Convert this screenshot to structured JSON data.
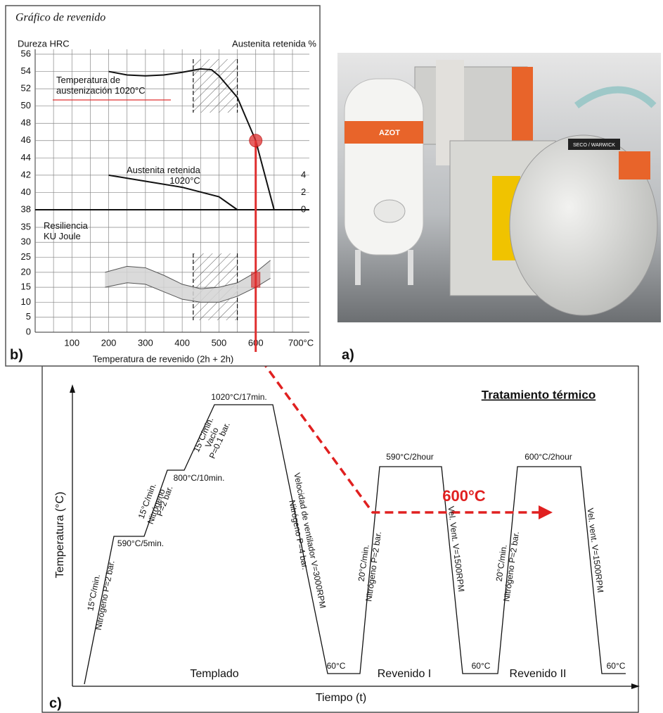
{
  "chart_data": [
    {
      "type": "line",
      "panel": "b)",
      "title": "Gráfico de revenido",
      "ylabel": "Dureza HRC",
      "y2label": "Austenita retenida %",
      "xlim": [
        0,
        700
      ],
      "ylim": [
        38,
        56
      ],
      "yticks": [
        38,
        40,
        42,
        44,
        46,
        48,
        50,
        52,
        54,
        56
      ],
      "y2lim": [
        0,
        18
      ],
      "y2ticks": [
        0,
        2,
        4
      ],
      "grid": true,
      "hatch": [
        430,
        550
      ],
      "highlight": {
        "x": 600,
        "y": 46,
        "color": "#e03030"
      },
      "series": [
        {
          "name": "Temperatura de\naustenización 1020°C",
          "color": "#111111",
          "x": [
            200,
            250,
            300,
            350,
            400,
            450,
            480,
            500,
            550,
            600,
            650
          ],
          "values": [
            54,
            53.6,
            53.5,
            53.6,
            53.9,
            54.3,
            54.2,
            53.5,
            51,
            46,
            38
          ]
        },
        {
          "name": "Austenita retenida\n1020°C",
          "color": "#111111",
          "axis": "y2",
          "x": [
            200,
            300,
            400,
            500,
            550
          ],
          "values": [
            4,
            3.3,
            2.6,
            1.5,
            0
          ]
        }
      ]
    },
    {
      "type": "band",
      "name": "Resiliencia\nKU Joule",
      "xlabel": "Temperatura de revenido (2h + 2h)",
      "xlim": [
        0,
        700
      ],
      "xticks": [
        100,
        200,
        300,
        400,
        500,
        600,
        {
          "value": 700,
          "label": "700°C"
        }
      ],
      "ylim": [
        0,
        35
      ],
      "yticks": [
        0,
        5,
        10,
        15,
        20,
        25,
        30,
        35
      ],
      "color": "#d4d4d4",
      "x": [
        190,
        250,
        300,
        350,
        400,
        450,
        500,
        550,
        600,
        640
      ],
      "lower": [
        15,
        16.5,
        16,
        13.5,
        11,
        10,
        10,
        12,
        15,
        18
      ],
      "upper": [
        20,
        22,
        21.5,
        19,
        16,
        14.5,
        15,
        16.5,
        20,
        24
      ]
    }
  ],
  "photo": {
    "caption": "a)",
    "labels": [
      "AZOT",
      "SECO / WARWICK"
    ]
  },
  "diagram": {
    "panel": "c)",
    "title": "Tratamiento térmico",
    "y_axis": "Temperatura (°C)",
    "x_axis": "Tiempo (t)",
    "highlight": "600°C",
    "stages": [
      "Templado",
      "Revenido I",
      "Revenido II"
    ],
    "labels": [
      "1020°C/17min.",
      "800°C/10min.",
      "590°C/5min.",
      "590°C/2hour",
      "600°C/2hour",
      "60°C",
      "60°C",
      "60°C"
    ],
    "slope_labels": [
      "15°C/min.",
      "Nitrógeno P=2 bar.",
      "15°C/min.",
      "Nitrógeno",
      "P=2 bar.",
      "15°C/min.",
      "Vacío",
      "P=0.1 bar.",
      "Velocidad de ventilador V=3000RPM",
      "Nitrógeno P=4 bar.",
      "20°C/min.",
      "Nitrógeno P=2 bar.",
      "Vel. Vent. V=1500RPM",
      "20°C/min.",
      "Nitrógeno P=2 bar.",
      "Vel. vent. V=1500RPM"
    ]
  }
}
